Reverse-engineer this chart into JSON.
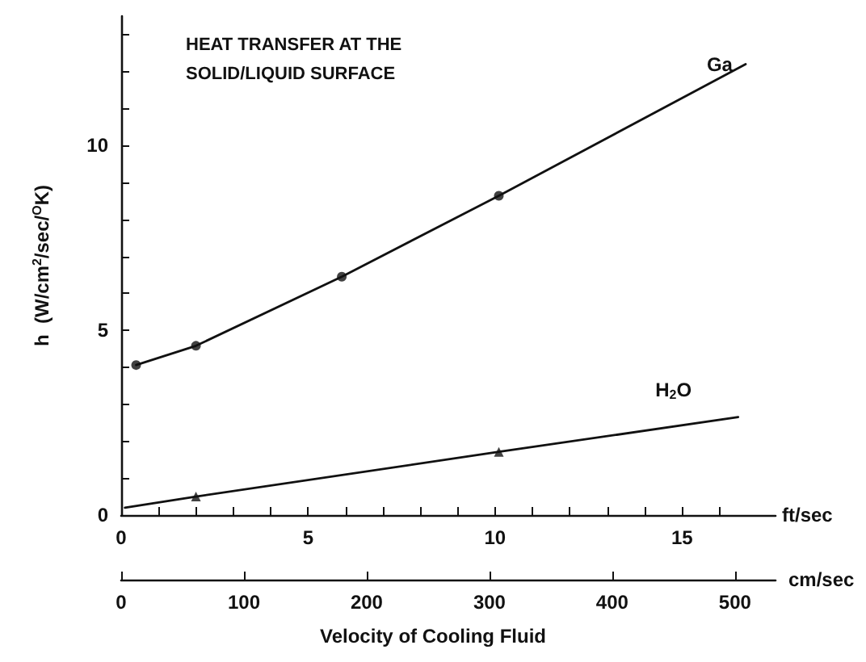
{
  "chart_data": {
    "type": "line",
    "title": "HEAT TRANSFER AT THE\nSOLID/LIQUID SURFACE",
    "xlabel": "ft/sec",
    "x2label": "cm/sec",
    "ylabel": "h  (W/cm$^{2}$/sec/$^{O}$K)",
    "annotations": [
      "Velocity of Cooling Fluid"
    ],
    "xlim": [
      0,
      17.5
    ],
    "xticks": [
      0,
      {
        "value": 1,
        "label": null
      },
      {
        "value": 2,
        "label": null
      },
      {
        "value": 3,
        "label": null
      },
      {
        "value": 4,
        "label": null
      },
      5,
      {
        "value": 6,
        "label": null
      },
      {
        "value": 7,
        "label": null
      },
      {
        "value": 8,
        "label": null
      },
      {
        "value": 9,
        "label": null
      },
      10,
      {
        "value": 11,
        "label": null
      },
      {
        "value": 12,
        "label": null
      },
      {
        "value": 13,
        "label": null
      },
      {
        "value": 14,
        "label": null
      },
      15,
      {
        "value": 16,
        "label": null
      }
    ],
    "x2lim": [
      0,
      533
    ],
    "x2ticks": [
      0,
      100,
      200,
      300,
      400,
      500
    ],
    "ylim": [
      0,
      13.5
    ],
    "yticks": [
      0,
      {
        "value": 1,
        "label": null
      },
      {
        "value": 2,
        "label": null
      },
      {
        "value": 3,
        "label": null
      },
      {
        "value": 4,
        "label": null
      },
      5,
      {
        "value": 6,
        "label": null
      },
      {
        "value": 7,
        "label": null
      },
      {
        "value": 8,
        "label": null
      },
      {
        "value": 9,
        "label": null
      },
      10,
      {
        "value": 11,
        "label": null
      },
      {
        "value": 12,
        "label": null
      },
      {
        "value": 13,
        "label": null
      }
    ],
    "grid": false,
    "legend": false,
    "series": [
      {
        "name": "Ga",
        "color": "#111111",
        "marker": "none",
        "x": [
          0.4,
          2.0,
          5.9,
          10.1,
          16.7
        ],
        "values": [
          4.06,
          4.58,
          6.45,
          8.64,
          12.2
        ]
      },
      {
        "name": "H$_{2}$O",
        "color": "#111111",
        "marker": "none",
        "x": [
          0.1,
          2.0,
          10.1,
          16.5
        ],
        "values": [
          0.2,
          0.5,
          1.71,
          2.65
        ]
      },
      {
        "type": "scatter",
        "color": "#111111",
        "marker": "circle",
        "x": [
          0.4,
          2.0,
          5.9,
          10.1
        ],
        "values": [
          4.06,
          4.58,
          6.45,
          8.64
        ]
      },
      {
        "type": "scatter",
        "color": "#111111",
        "marker": "triangle",
        "x": [
          2.0,
          10.1
        ],
        "values": [
          0.5,
          1.71
        ]
      }
    ]
  }
}
